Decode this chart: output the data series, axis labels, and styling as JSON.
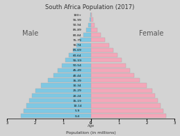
{
  "title": "South Africa Population (2017)",
  "xlabel": "Population (in millions)",
  "age_groups": [
    "0-4",
    "5-9",
    "10-14",
    "15-19",
    "20-24",
    "25-29",
    "30-34",
    "35-39",
    "40-44",
    "45-49",
    "50-54",
    "55-59",
    "60-64",
    "65-69",
    "70-74",
    "75-79",
    "80-84",
    "85-89",
    "90-94",
    "95-99",
    "100+"
  ],
  "male": [
    2.5,
    2.4,
    2.3,
    2.2,
    2.1,
    2.0,
    1.8,
    1.55,
    1.35,
    1.2,
    1.05,
    0.92,
    0.78,
    0.65,
    0.52,
    0.4,
    0.28,
    0.18,
    0.1,
    0.05,
    0.02
  ],
  "female": [
    2.7,
    2.6,
    2.5,
    2.4,
    2.3,
    2.2,
    2.0,
    1.75,
    1.55,
    1.4,
    1.25,
    1.1,
    0.95,
    0.8,
    0.65,
    0.5,
    0.35,
    0.23,
    0.14,
    0.07,
    0.03
  ],
  "male_color": "#7ec8e3",
  "female_color": "#f4a7b9",
  "bg_color": "#d3d3d3",
  "bar_edge_color": "#aaaaaa",
  "xlim": 3.0,
  "male_label": "Male",
  "female_label": "Female",
  "age_label": "Age"
}
